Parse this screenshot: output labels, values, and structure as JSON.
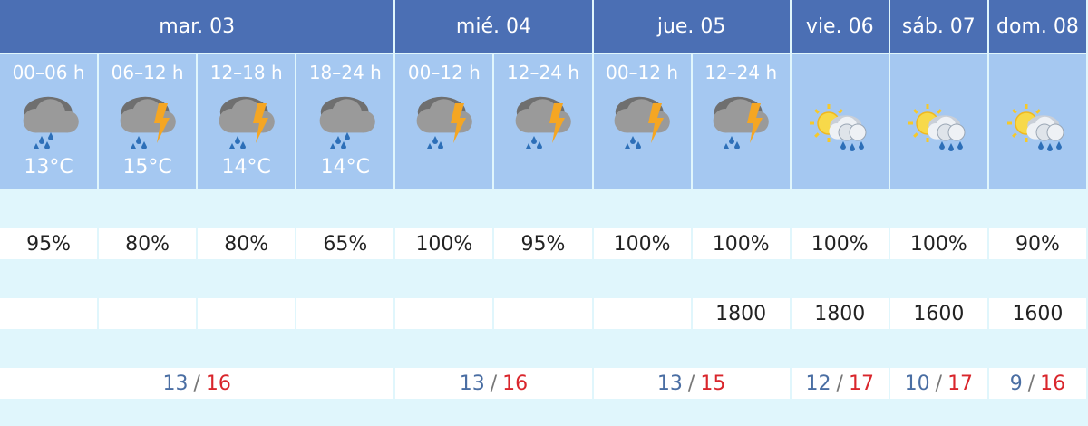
{
  "separator": "/",
  "days": [
    {
      "label": "mar. 03",
      "min": "13",
      "max": "16",
      "periods": [
        {
          "label": "00–06 h",
          "icon": "rain",
          "temp": "13°C",
          "precip": "95%"
        },
        {
          "label": "06–12 h",
          "icon": "storm",
          "temp": "15°C",
          "precip": "80%"
        },
        {
          "label": "12–18 h",
          "icon": "storm",
          "temp": "14°C",
          "precip": "80%"
        },
        {
          "label": "18–24 h",
          "icon": "rain",
          "temp": "14°C",
          "precip": "65%"
        }
      ]
    },
    {
      "label": "mié. 04",
      "min": "13",
      "max": "16",
      "periods": [
        {
          "label": "00–12 h",
          "icon": "storm",
          "precip": "100%"
        },
        {
          "label": "12–24 h",
          "icon": "storm",
          "precip": "95%"
        }
      ]
    },
    {
      "label": "jue. 05",
      "min": "13",
      "max": "15",
      "periods": [
        {
          "label": "00–12 h",
          "icon": "storm",
          "precip": "100%"
        },
        {
          "label": "12–24 h",
          "icon": "storm",
          "precip": "100%",
          "snow": "1800"
        }
      ]
    },
    {
      "label": "vie. 06",
      "min": "12",
      "max": "17",
      "periods": [
        {
          "icon": "sun-rain",
          "precip": "100%",
          "snow": "1800"
        }
      ]
    },
    {
      "label": "sáb. 07",
      "min": "10",
      "max": "17",
      "periods": [
        {
          "icon": "sun-rain",
          "precip": "100%",
          "snow": "1600"
        }
      ]
    },
    {
      "label": "dom. 08",
      "min": "9",
      "max": "16",
      "periods": [
        {
          "icon": "sun-rain",
          "precip": "90%",
          "snow": "1600"
        }
      ]
    }
  ]
}
